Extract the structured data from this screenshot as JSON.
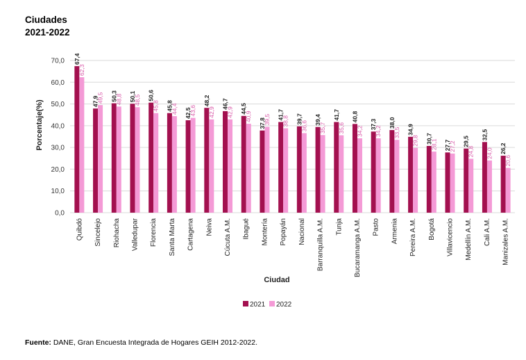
{
  "header": {
    "title_line1": "Ciudades",
    "title_line2": "2021-2022"
  },
  "footer": {
    "source_label": "Fuente:",
    "source_text": " DANE, Gran Encuesta Integrada de Hogares GEIH 2012-2022."
  },
  "colors": {
    "series_2021": "#a3104f",
    "series_2022": "#f49ad6",
    "grid": "#d9d9d9",
    "label_2022": "#d957a8"
  },
  "chart_data": {
    "type": "bar",
    "xlabel": "Ciudad",
    "ylabel": "Porcentaje(%)",
    "ylim": [
      0,
      70
    ],
    "yticks": [
      "0,0",
      "10,0",
      "20,0",
      "30,0",
      "40,0",
      "50,0",
      "60,0",
      "70,0"
    ],
    "grid": true,
    "legend_position": "bottom",
    "categories": [
      "Quibdó",
      "Sincelejo",
      "Riohacha",
      "Valledupar",
      "Florencia",
      "Santa Marta",
      "Cartagena",
      "Neiva",
      "Cúcuta A.M.",
      "Ibagué",
      "Montería",
      "Popayán",
      "Nacional",
      "Barranquilla A.M.",
      "Tunja",
      "Bucaramanga A.M.",
      "Pasto",
      "Armenia",
      "Pereira A.M.",
      "Bogotá",
      "Villavicencio",
      "Medellín A.M.",
      "Cali A.M.",
      "Manizales A.M."
    ],
    "series": [
      {
        "name": "2021",
        "values": [
          67.4,
          47.9,
          50.3,
          50.1,
          50.6,
          45.8,
          42.5,
          48.2,
          46.7,
          44.5,
          37.8,
          41.7,
          39.7,
          39.4,
          41.7,
          40.8,
          37.3,
          38.0,
          34.9,
          30.7,
          27.7,
          29.5,
          32.5,
          26.2
        ],
        "labels": [
          "67,4",
          "47,9",
          "50,3",
          "50,1",
          "50,6",
          "45,8",
          "42,5",
          "48,2",
          "46,7",
          "44,5",
          "37,8",
          "41,7",
          "39,7",
          "39,4",
          "41,7",
          "40,8",
          "37,3",
          "38,0",
          "34,9",
          "30,7",
          "27,7",
          "29,5",
          "32,5",
          "26,2"
        ]
      },
      {
        "name": "2022",
        "values": [
          62.3,
          49.5,
          48.8,
          48.5,
          45.8,
          44.4,
          43.6,
          42.9,
          42.9,
          40.9,
          39.5,
          38.8,
          36.6,
          35.7,
          35.6,
          34.2,
          34.2,
          33.5,
          29.8,
          28.1,
          27.2,
          24.8,
          24.0,
          20.6
        ],
        "labels": [
          "62,3",
          "49,5",
          "48,8",
          "48,5",
          "45,8",
          "44,4",
          "43,6",
          "42,9",
          "42,9",
          "40,9",
          "39,5",
          "38,8",
          "36,6",
          "35,7",
          "35,6",
          "34,2",
          "34,2",
          "33,5",
          "29,8",
          "28,1",
          "27,2",
          "24,8",
          "24,0",
          "20,6"
        ]
      }
    ]
  }
}
